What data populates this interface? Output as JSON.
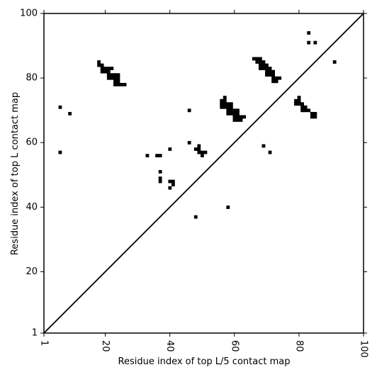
{
  "chart_data": {
    "type": "scatter",
    "title": "",
    "xlabel": "Residue index of top L/5 contact map",
    "ylabel": "Residue index of top L contact map",
    "xlim": [
      1,
      100
    ],
    "ylim": [
      1,
      100
    ],
    "x_ticks": [
      1,
      20,
      40,
      60,
      80,
      100
    ],
    "y_ticks": [
      1,
      20,
      40,
      60,
      80,
      100
    ],
    "grid": false,
    "diagonal": true,
    "marker": "square",
    "color": "#000000",
    "points": [
      [
        6,
        71
      ],
      [
        9,
        69
      ],
      [
        6,
        57
      ],
      [
        18,
        84
      ],
      [
        18,
        85
      ],
      [
        19,
        84
      ],
      [
        19,
        83
      ],
      [
        19,
        82
      ],
      [
        20,
        83
      ],
      [
        20,
        82
      ],
      [
        21,
        83
      ],
      [
        21,
        82
      ],
      [
        21,
        81
      ],
      [
        21,
        80
      ],
      [
        22,
        83
      ],
      [
        22,
        81
      ],
      [
        22,
        80
      ],
      [
        23,
        81
      ],
      [
        23,
        80
      ],
      [
        23,
        79
      ],
      [
        23,
        78
      ],
      [
        24,
        81
      ],
      [
        24,
        80
      ],
      [
        24,
        79
      ],
      [
        24,
        78
      ],
      [
        25,
        78
      ],
      [
        26,
        78
      ],
      [
        33,
        56
      ],
      [
        36,
        56
      ],
      [
        37,
        56
      ],
      [
        37,
        51
      ],
      [
        37,
        49
      ],
      [
        37,
        48
      ],
      [
        40,
        58
      ],
      [
        40,
        48
      ],
      [
        40,
        46
      ],
      [
        41,
        48
      ],
      [
        41,
        47
      ],
      [
        46,
        70
      ],
      [
        46,
        60
      ],
      [
        48,
        58
      ],
      [
        48,
        37
      ],
      [
        49,
        59
      ],
      [
        49,
        58
      ],
      [
        49,
        57
      ],
      [
        50,
        57
      ],
      [
        50,
        56
      ],
      [
        51,
        57
      ],
      [
        56,
        73
      ],
      [
        56,
        72
      ],
      [
        56,
        71
      ],
      [
        57,
        74
      ],
      [
        57,
        73
      ],
      [
        57,
        72
      ],
      [
        57,
        71
      ],
      [
        58,
        72
      ],
      [
        58,
        71
      ],
      [
        58,
        70
      ],
      [
        58,
        69
      ],
      [
        58,
        40
      ],
      [
        59,
        72
      ],
      [
        59,
        71
      ],
      [
        59,
        70
      ],
      [
        59,
        69
      ],
      [
        60,
        70
      ],
      [
        60,
        69
      ],
      [
        60,
        68
      ],
      [
        60,
        67
      ],
      [
        61,
        70
      ],
      [
        61,
        69
      ],
      [
        61,
        68
      ],
      [
        61,
        67
      ],
      [
        62,
        68
      ],
      [
        62,
        67
      ],
      [
        63,
        68
      ],
      [
        66,
        86
      ],
      [
        67,
        86
      ],
      [
        67,
        85
      ],
      [
        68,
        86
      ],
      [
        68,
        85
      ],
      [
        68,
        84
      ],
      [
        68,
        83
      ],
      [
        69,
        85
      ],
      [
        69,
        84
      ],
      [
        69,
        83
      ],
      [
        69,
        59
      ],
      [
        70,
        84
      ],
      [
        70,
        83
      ],
      [
        70,
        82
      ],
      [
        70,
        81
      ],
      [
        71,
        83
      ],
      [
        71,
        82
      ],
      [
        71,
        81
      ],
      [
        71,
        57
      ],
      [
        72,
        82
      ],
      [
        72,
        81
      ],
      [
        72,
        80
      ],
      [
        72,
        79
      ],
      [
        73,
        80
      ],
      [
        73,
        79
      ],
      [
        74,
        80
      ],
      [
        79,
        73
      ],
      [
        79,
        72
      ],
      [
        80,
        74
      ],
      [
        80,
        73
      ],
      [
        80,
        72
      ],
      [
        81,
        72
      ],
      [
        81,
        71
      ],
      [
        81,
        70
      ],
      [
        82,
        71
      ],
      [
        82,
        70
      ],
      [
        83,
        70
      ],
      [
        83,
        94
      ],
      [
        83,
        91
      ],
      [
        84,
        69
      ],
      [
        84,
        68
      ],
      [
        85,
        69
      ],
      [
        85,
        68
      ],
      [
        85,
        91
      ],
      [
        91,
        85
      ]
    ]
  }
}
